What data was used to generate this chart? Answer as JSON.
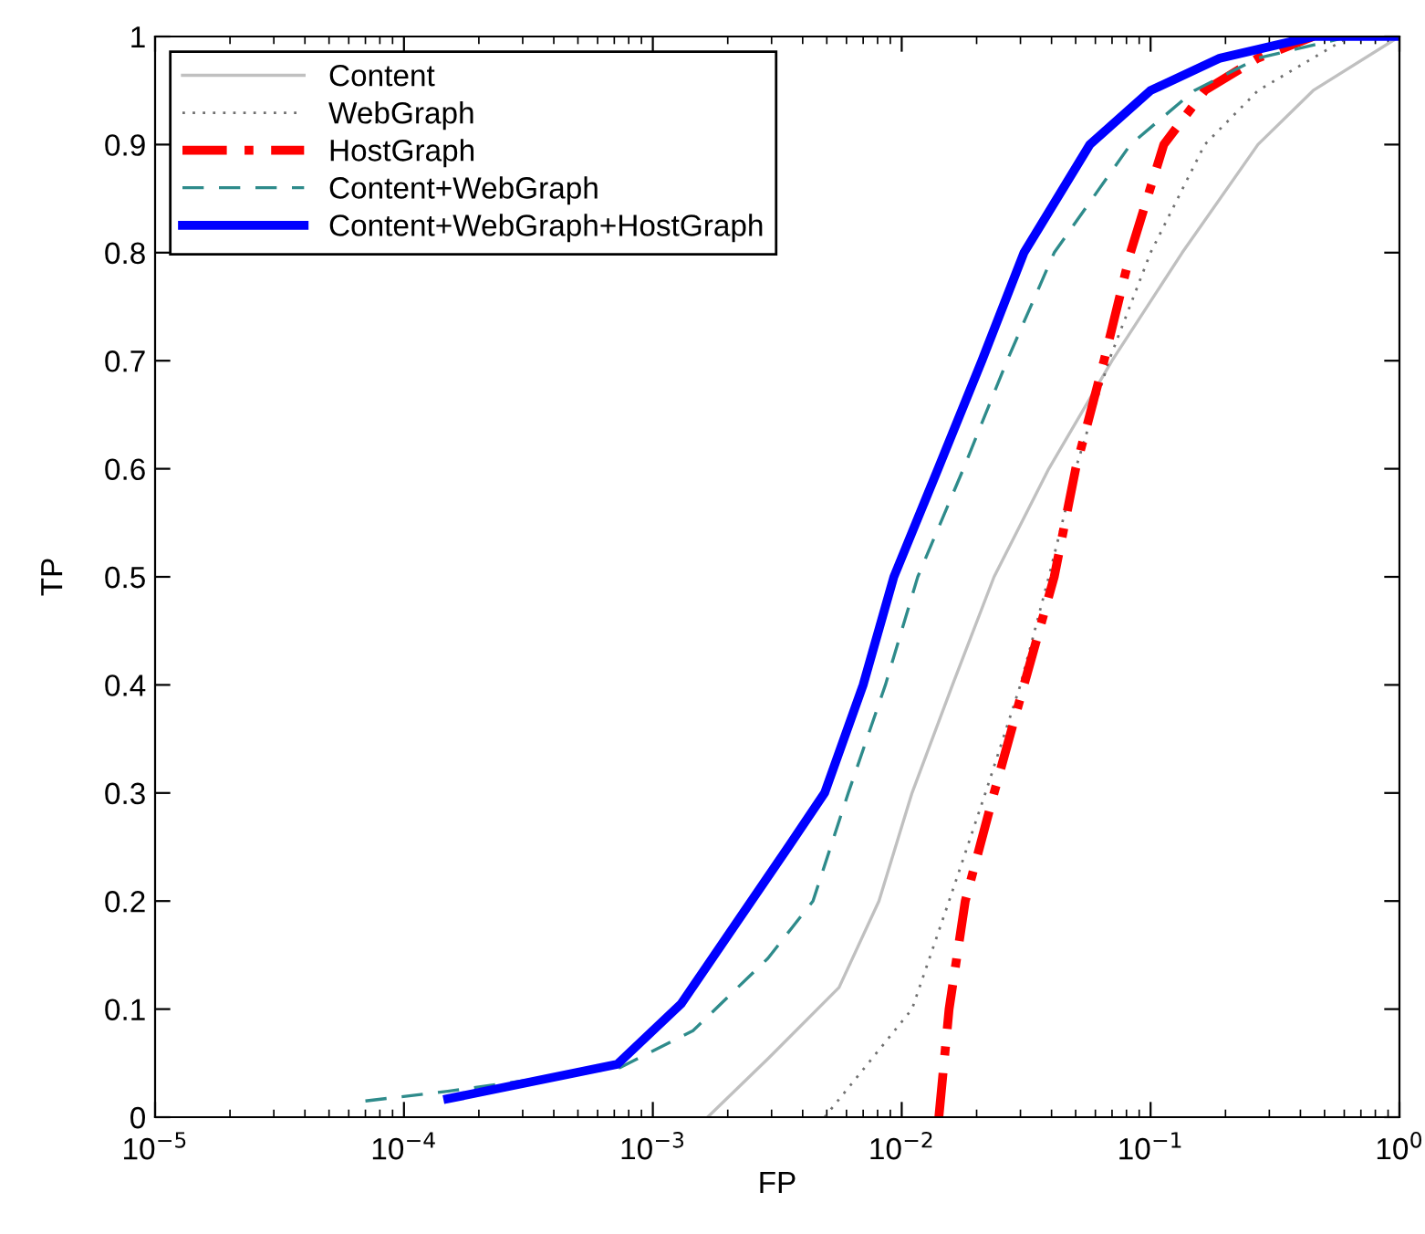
{
  "chart_data": {
    "type": "line",
    "xlabel": "FP",
    "ylabel": "TP",
    "log": "x",
    "grid": false,
    "legend": "top left",
    "marker": "none",
    "xlim": [
      1e-05,
      1
    ],
    "xticks": [
      {
        "value": 1e-05,
        "label": "10$^{−5}$"
      },
      {
        "value": 0.0001,
        "label": "10$^{−4}$"
      },
      {
        "value": 0.001,
        "label": "10$^{−3}$"
      },
      {
        "value": 0.01,
        "label": "10$^{−2}$"
      },
      {
        "value": 0.1,
        "label": "10$^{−1}$"
      },
      {
        "value": 1,
        "label": "10$^{0}$"
      }
    ],
    "ylim": [
      0,
      1
    ],
    "yticks": [
      0,
      0.1,
      0.2,
      0.3,
      0.4,
      0.5,
      0.6,
      0.7,
      0.8,
      0.9,
      1
    ],
    "series": [
      {
        "name": "Content",
        "color": "#c0c0c0",
        "line_style": "solid",
        "x": [
          0.00166,
          0.0029,
          0.0056,
          0.0081,
          0.011,
          0.016,
          0.0235,
          0.039,
          0.07,
          0.134,
          0.27,
          0.45,
          1
        ],
        "values": [
          0,
          0.054,
          0.12,
          0.2,
          0.3,
          0.4,
          0.5,
          0.6,
          0.7,
          0.8,
          0.9,
          0.95,
          1
        ]
      },
      {
        "name": "WebGraph",
        "color": "#707070",
        "line_style": "dotted",
        "x": [
          0.0049,
          0.011,
          0.0155,
          0.0217,
          0.03,
          0.039,
          0.05,
          0.068,
          0.1,
          0.165,
          0.27,
          0.63,
          1
        ],
        "values": [
          0,
          0.1,
          0.2,
          0.3,
          0.4,
          0.5,
          0.6,
          0.7,
          0.8,
          0.9,
          0.95,
          1,
          1
        ]
      },
      {
        "name": "HostGraph",
        "color": "#ff0000",
        "line_style": "dashdot",
        "x": [
          0.0141,
          0.0155,
          0.018,
          0.0235,
          0.031,
          0.041,
          0.05,
          0.065,
          0.083,
          0.113,
          0.165,
          0.27,
          0.45
        ],
        "values": [
          0,
          0.1,
          0.2,
          0.3,
          0.4,
          0.5,
          0.6,
          0.7,
          0.8,
          0.9,
          0.95,
          0.98,
          1
        ]
      },
      {
        "name": "Content+WebGraph",
        "color": "#2e8b8b",
        "line_style": "dashed",
        "x": [
          7e-05,
          0.00015,
          0.00074,
          0.00145,
          0.0029,
          0.0044,
          0.0061,
          0.0086,
          0.0116,
          0.0177,
          0.0265,
          0.041,
          0.083,
          0.15,
          0.27,
          0.63,
          1
        ],
        "values": [
          0.015,
          0.024,
          0.046,
          0.08,
          0.147,
          0.2,
          0.3,
          0.4,
          0.5,
          0.6,
          0.7,
          0.8,
          0.9,
          0.95,
          0.98,
          1,
          1
        ]
      },
      {
        "name": "Content+WebGraph+HostGraph",
        "color": "#0000ff",
        "line_style": "solid",
        "x": [
          0.00015,
          0.00072,
          0.0013,
          0.0035,
          0.0049,
          0.007,
          0.0093,
          0.014,
          0.021,
          0.031,
          0.057,
          0.1,
          0.19,
          0.45,
          1
        ],
        "values": [
          0.017,
          0.049,
          0.105,
          0.25,
          0.3,
          0.4,
          0.5,
          0.6,
          0.7,
          0.8,
          0.9,
          0.95,
          0.98,
          1,
          1
        ]
      }
    ]
  }
}
